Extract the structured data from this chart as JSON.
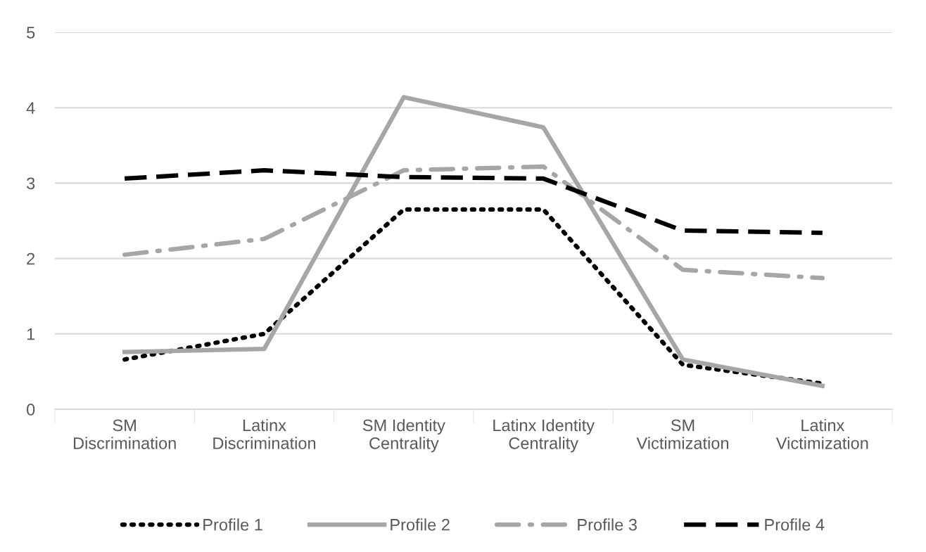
{
  "chart_data": {
    "type": "line",
    "categories": [
      "SM\nDiscrimination",
      "Latinx\nDiscrimination",
      "SM Identity\nCentrality",
      "Latinx Identity\nCentrality",
      "SM\nVictimization",
      "Latinx\nVictimization"
    ],
    "series": [
      {
        "name": "Profile 1",
        "color": "#000000",
        "line_style": "dotted",
        "values": [
          0.66,
          1.0,
          2.65,
          2.65,
          0.59,
          0.34
        ]
      },
      {
        "name": "Profile 2",
        "color": "#a6a6a6",
        "line_style": "solid",
        "values": [
          0.76,
          0.8,
          4.14,
          3.74,
          0.66,
          0.31
        ]
      },
      {
        "name": "Profile 3",
        "color": "#a6a6a6",
        "line_style": "dashdot",
        "values": [
          2.05,
          2.26,
          3.17,
          3.22,
          1.85,
          1.74
        ]
      },
      {
        "name": "Profile 4",
        "color": "#000000",
        "line_style": "dashed",
        "values": [
          3.06,
          3.17,
          3.08,
          3.06,
          2.37,
          2.34
        ]
      }
    ],
    "ylim": [
      0,
      5
    ],
    "yticks": [
      0,
      1,
      2,
      3,
      4,
      5
    ],
    "grid": "y",
    "legend": "bottom"
  }
}
